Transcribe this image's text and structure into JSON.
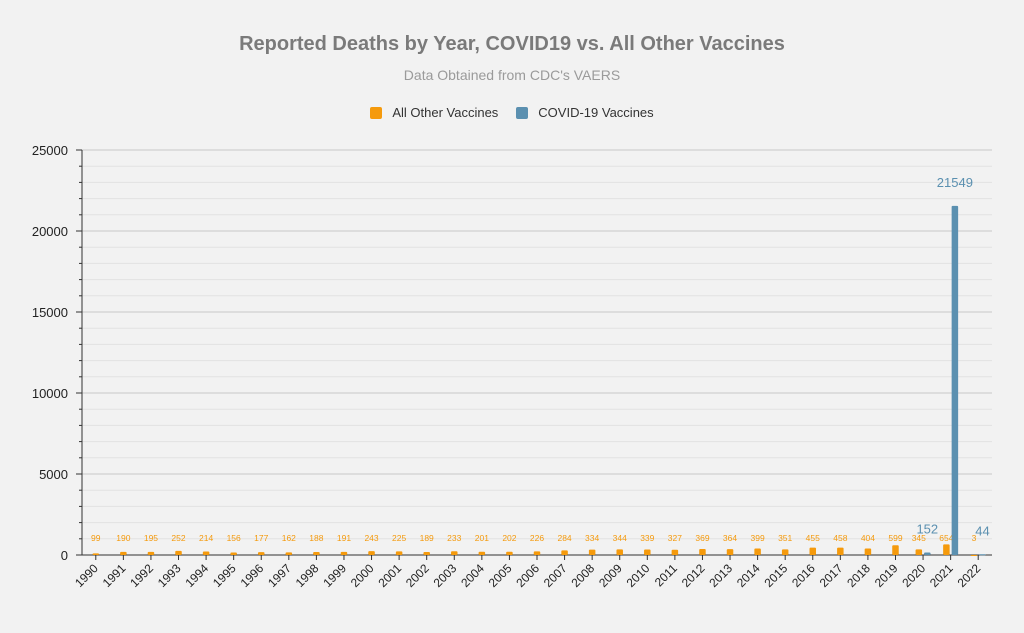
{
  "chart_data": {
    "type": "bar",
    "title": "Reported Deaths by Year, COVID19 vs. All Other Vaccines",
    "subtitle": "Data Obtained from CDC's VAERS",
    "legend_position": "top",
    "grid": true,
    "ylim": [
      0,
      25000
    ],
    "y_ticks": [
      0,
      5000,
      10000,
      15000,
      20000,
      25000
    ],
    "categories": [
      "1990",
      "1991",
      "1992",
      "1993",
      "1994",
      "1995",
      "1996",
      "1997",
      "1998",
      "1999",
      "2000",
      "2001",
      "2002",
      "2003",
      "2004",
      "2005",
      "2006",
      "2007",
      "2008",
      "2009",
      "2010",
      "2011",
      "2012",
      "2013",
      "2014",
      "2015",
      "2016",
      "2017",
      "2018",
      "2019",
      "2020",
      "2021",
      "2022"
    ],
    "series": [
      {
        "name": "All Other Vaccines",
        "color": "#f59a0c",
        "values": [
          99,
          190,
          195,
          252,
          214,
          156,
          177,
          162,
          188,
          191,
          243,
          225,
          189,
          233,
          201,
          202,
          226,
          284,
          334,
          344,
          339,
          327,
          369,
          364,
          399,
          351,
          455,
          458,
          404,
          599,
          345,
          654,
          3
        ]
      },
      {
        "name": "COVID-19 Vaccines",
        "color": "#5b90b0",
        "values": [
          null,
          null,
          null,
          null,
          null,
          null,
          null,
          null,
          null,
          null,
          null,
          null,
          null,
          null,
          null,
          null,
          null,
          null,
          null,
          null,
          null,
          null,
          null,
          null,
          null,
          null,
          null,
          null,
          null,
          null,
          152,
          21549,
          44
        ]
      }
    ]
  }
}
